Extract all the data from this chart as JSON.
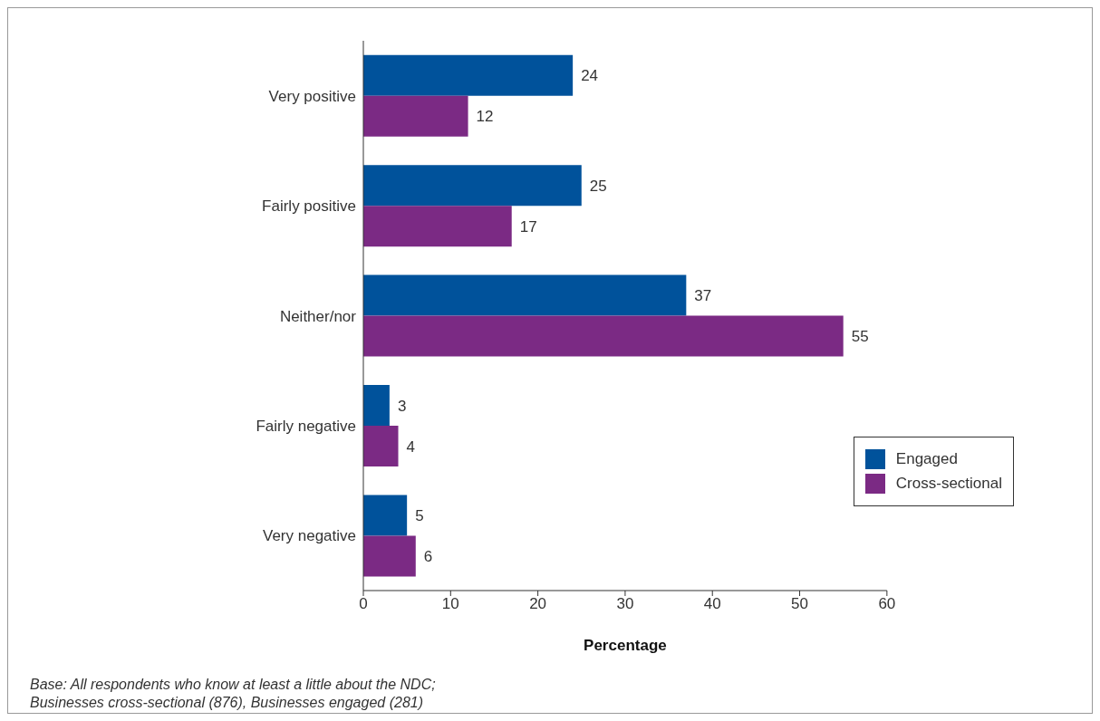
{
  "chart_data": {
    "type": "bar",
    "orientation": "horizontal",
    "xlabel": "Percentage",
    "categories": [
      "Very positive",
      "Fairly positive",
      "Neither/nor",
      "Fairly negative",
      "Very negative"
    ],
    "series": [
      {
        "name": "Engaged",
        "color": "#00529b",
        "values": [
          24,
          25,
          37,
          3,
          5
        ]
      },
      {
        "name": "Cross-sectional",
        "color": "#7b2a84",
        "values": [
          12,
          17,
          55,
          4,
          6
        ]
      }
    ],
    "xlim": [
      0,
      60
    ],
    "xticks": [
      0,
      10,
      20,
      30,
      40,
      50,
      60
    ],
    "data_labels": true,
    "legend": "bottom right",
    "grid": false,
    "annotations": [
      "Base: All respondents who know at least a little about the NDC;\nBusinesses cross-sectional (876), Businesses engaged (281)"
    ]
  }
}
